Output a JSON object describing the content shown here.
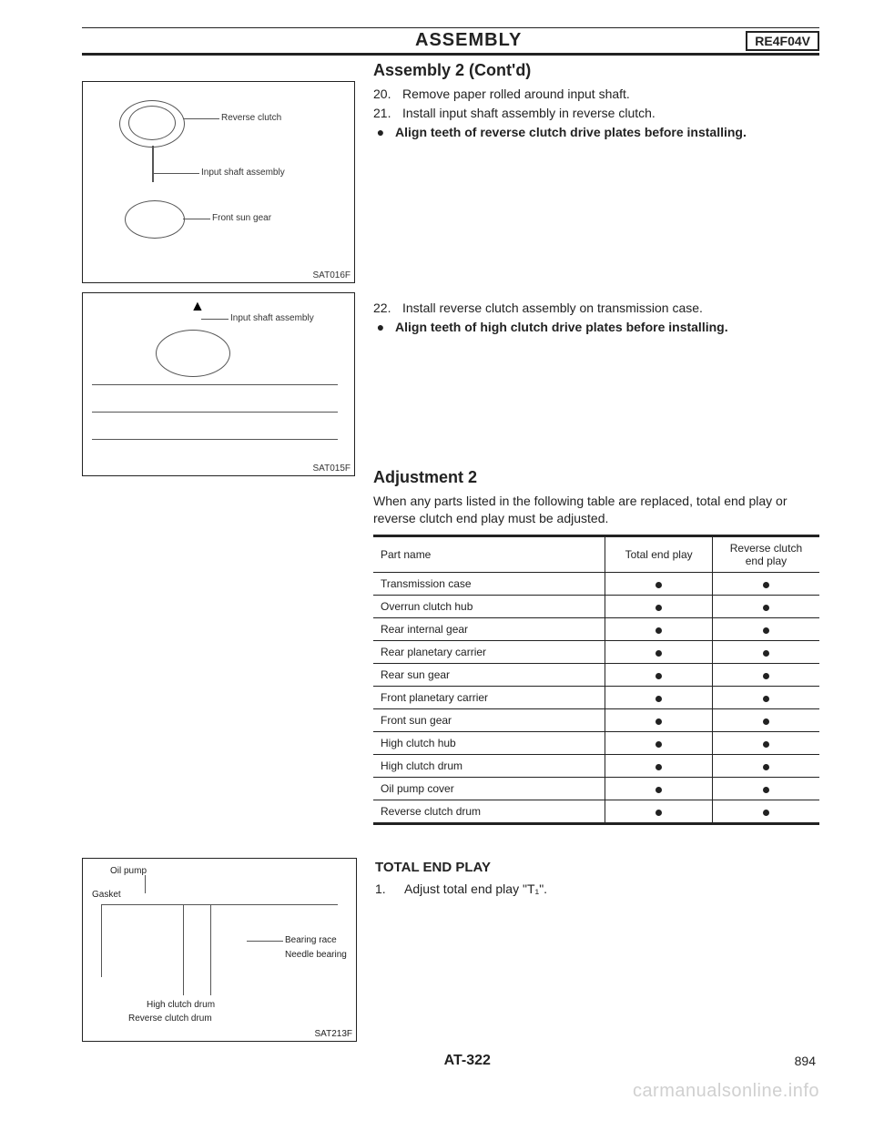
{
  "header": {
    "title": "ASSEMBLY",
    "code": "RE4F04V"
  },
  "section1": {
    "heading": "Assembly 2 (Cont'd)",
    "step20_num": "20.",
    "step20_text": "Remove paper rolled around input shaft.",
    "step21_num": "21.",
    "step21_text": "Install input shaft assembly in reverse clutch.",
    "bullet1": "Align teeth of reverse clutch drive plates before installing."
  },
  "section2": {
    "step22_num": "22.",
    "step22_text": "Install reverse clutch assembly on transmission case.",
    "bullet2": "Align teeth of high clutch drive plates before installing."
  },
  "adjustment": {
    "heading": "Adjustment 2",
    "intro": "When any parts listed in the following table are replaced, total end play or reverse clutch end play must be adjusted.",
    "col1": "Part name",
    "col2": "Total end play",
    "col3": "Reverse clutch end play",
    "rows": [
      {
        "name": "Transmission case",
        "a": true,
        "b": true
      },
      {
        "name": "Overrun clutch hub",
        "a": true,
        "b": true
      },
      {
        "name": "Rear internal gear",
        "a": true,
        "b": true
      },
      {
        "name": "Rear planetary carrier",
        "a": true,
        "b": true
      },
      {
        "name": "Rear sun gear",
        "a": true,
        "b": true
      },
      {
        "name": "Front planetary carrier",
        "a": true,
        "b": true
      },
      {
        "name": "Front sun gear",
        "a": true,
        "b": true
      },
      {
        "name": "High clutch hub",
        "a": true,
        "b": true
      },
      {
        "name": "High clutch drum",
        "a": true,
        "b": true
      },
      {
        "name": "Oil pump cover",
        "a": true,
        "b": true
      },
      {
        "name": "Reverse clutch drum",
        "a": true,
        "b": true
      }
    ]
  },
  "total_end_play": {
    "heading": "TOTAL END PLAY",
    "step1_num": "1.",
    "step1_text": "Adjust total end play \"T₁\"."
  },
  "figures": {
    "fig1": {
      "code": "SAT016F",
      "l1": "Reverse clutch",
      "l2": "Input shaft assembly",
      "l3": "Front sun gear"
    },
    "fig2": {
      "code": "SAT015F",
      "l1": "Input shaft assembly"
    },
    "fig3": {
      "code": "SAT213F",
      "l1": "Oil pump",
      "l2": "Gasket",
      "l3": "Bearing race",
      "l4": "Needle bearing",
      "l5": "High clutch drum",
      "l6": "Reverse clutch drum"
    }
  },
  "footer": {
    "page_code": "AT-322",
    "page_num": "894"
  },
  "watermark": "carmanualsonline.info"
}
